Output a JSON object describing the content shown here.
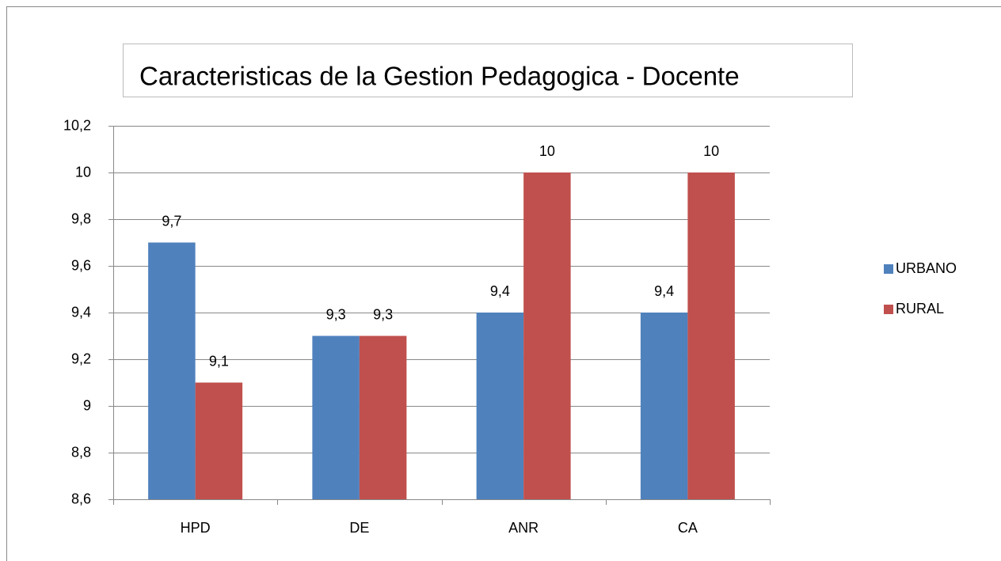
{
  "chart_data": {
    "type": "bar",
    "title": "Caracteristicas  de la Gestion Pedagogica  - Docente",
    "categories": [
      "HPD",
      "DE",
      "ANR",
      "CA"
    ],
    "series": [
      {
        "name": "URBANO",
        "color": "#4f81bd",
        "values": [
          9.7,
          9.3,
          9.4,
          9.4
        ],
        "value_labels": [
          "9,7",
          "9,3",
          "9,4",
          "9,4"
        ]
      },
      {
        "name": "RURAL",
        "color": "#c0504d",
        "values": [
          9.1,
          9.3,
          10,
          10
        ],
        "value_labels": [
          "9,1",
          "9,3",
          "10",
          "10"
        ]
      }
    ],
    "ylim": [
      8.6,
      10.2
    ],
    "yticks": [
      {
        "value": 8.6,
        "label": "8,6"
      },
      {
        "value": 8.8,
        "label": "8,8"
      },
      9,
      {
        "value": 9.2,
        "label": "9,2"
      },
      {
        "value": 9.4,
        "label": "9,4"
      },
      {
        "value": 9.6,
        "label": "9,6"
      },
      {
        "value": 9.8,
        "label": "9,8"
      },
      10,
      {
        "value": 10.2,
        "label": "10,2"
      }
    ],
    "grid": true,
    "legend": "right"
  }
}
